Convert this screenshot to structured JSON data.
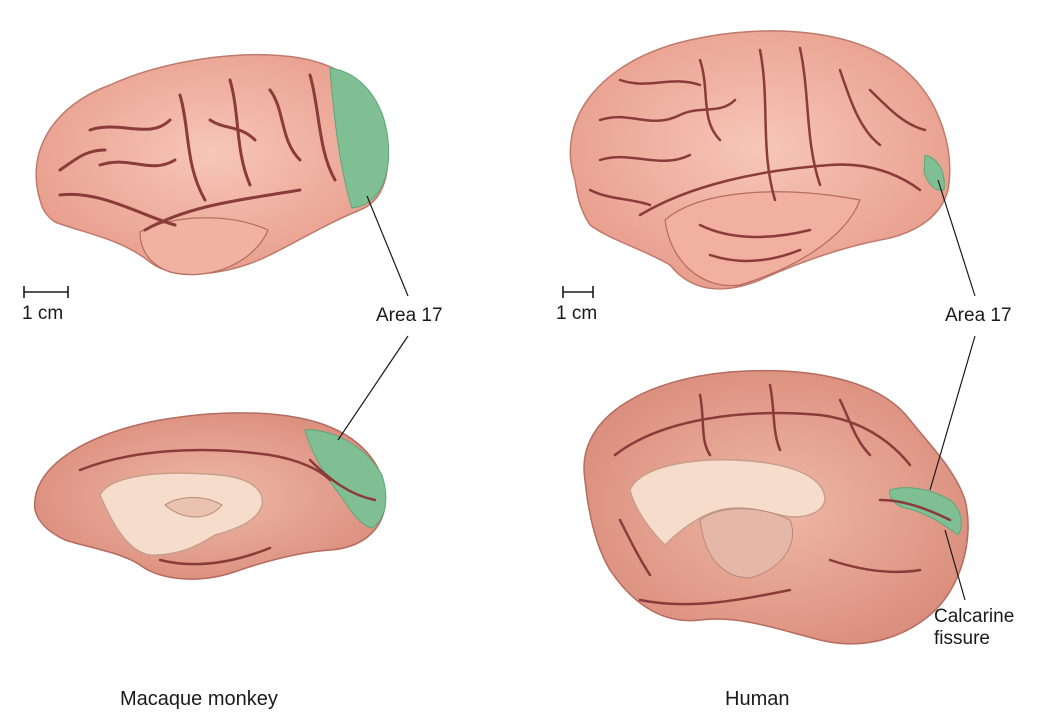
{
  "colors": {
    "cortex": "#f2b3a3",
    "cortex_medial": "#e8a394",
    "sulcus": "#8a3b3a",
    "highlight": "#d9a78f",
    "corpus_callosum": "#f6dccb",
    "area17": "#7fbf93",
    "area17_dark": "#5aa877",
    "line": "#1a1a1a"
  },
  "icons": {
    "scale_bar": "scale-bar-icon",
    "brain": "brain-illustration-icon"
  },
  "labels": {
    "scale_left": "1 cm",
    "scale_right": "1 cm",
    "area17_left": "Area 17",
    "area17_right": "Area 17",
    "calcarine_line1": "Calcarine",
    "calcarine_line2": "fissure",
    "caption_left": "Macaque monkey",
    "caption_right": "Human"
  }
}
